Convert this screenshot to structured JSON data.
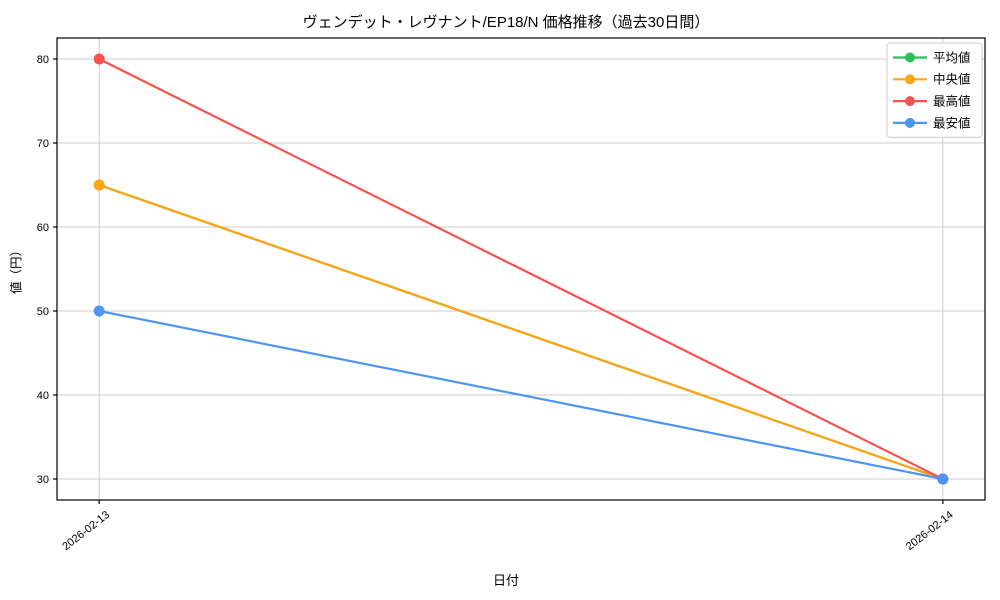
{
  "figure": {
    "background": "#ffffff",
    "frame_color": "#000000",
    "grid_color": "#cccccc",
    "text_color": "#000000",
    "legend_border_color": "#cccccc",
    "legend_background": "#ffffff"
  },
  "chart_data": {
    "type": "line",
    "title": "ヴェンデット・レヴナント/EP18/N 価格推移（過去30日間）",
    "xlabel": "日付",
    "ylabel": "値（円）",
    "categories": [
      "2026-02-13",
      "2026-02-14"
    ],
    "series": [
      {
        "key": "average",
        "name": "平均値",
        "color": "#2dbd5f",
        "values": [
          65,
          30
        ]
      },
      {
        "key": "median",
        "name": "中央値",
        "color": "#ffa414",
        "values": [
          65,
          30
        ]
      },
      {
        "key": "max",
        "name": "最高値",
        "color": "#f8514e",
        "values": [
          80,
          30
        ]
      },
      {
        "key": "min",
        "name": "最安値",
        "color": "#4e95f2",
        "values": [
          50,
          30
        ]
      }
    ],
    "yticks": [
      30,
      40,
      50,
      60,
      70,
      80
    ],
    "ylim": [
      27.5,
      82.5
    ],
    "grid": true,
    "legend_position": "top-right"
  }
}
